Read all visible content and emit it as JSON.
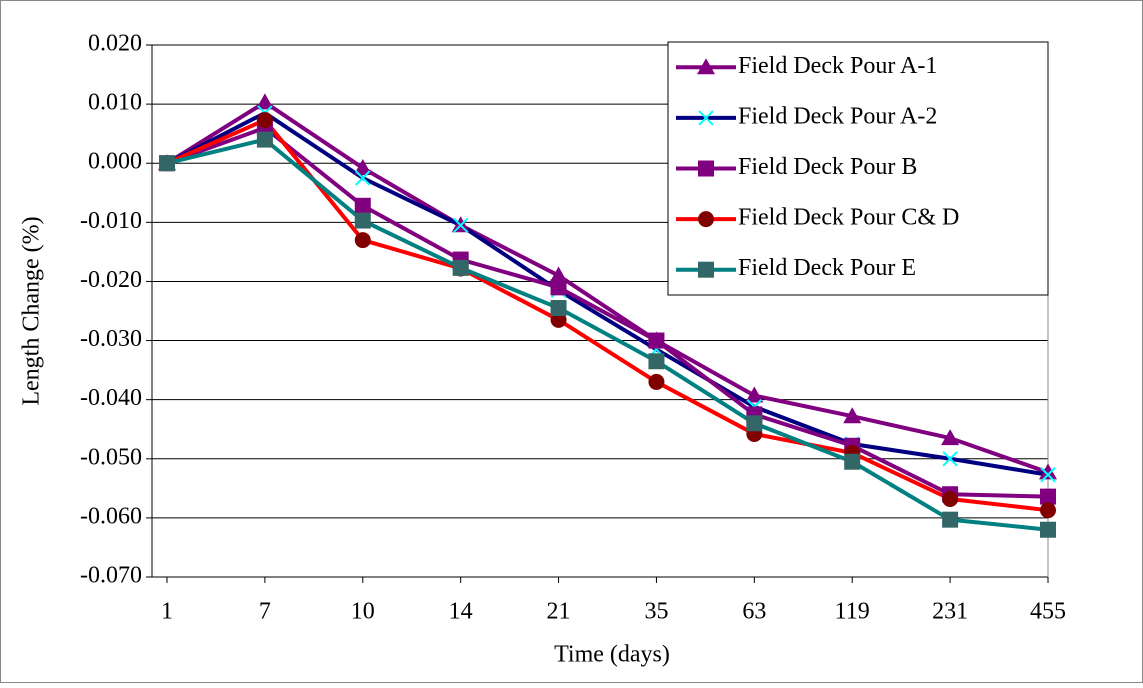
{
  "chart_data": {
    "type": "line",
    "x_label": "Time (days)",
    "y_label": "Length Change (%)",
    "categories": [
      "1",
      "7",
      "10",
      "14",
      "21",
      "35",
      "63",
      "119",
      "231",
      "455"
    ],
    "ylim": [
      -0.07,
      0.02
    ],
    "yticks": [
      {
        "value": 0.02,
        "label": "0.020"
      },
      {
        "value": 0.01,
        "label": "0.010"
      },
      {
        "value": 0,
        "label": "0.000"
      },
      {
        "value": -0.01,
        "label": "-0.010"
      },
      {
        "value": -0.02,
        "label": "-0.020"
      },
      {
        "value": -0.03,
        "label": "-0.030"
      },
      {
        "value": -0.04,
        "label": "-0.040"
      },
      {
        "value": -0.05,
        "label": "-0.050"
      },
      {
        "value": -0.06,
        "label": "-0.060"
      },
      {
        "value": -0.07,
        "label": "-0.070"
      }
    ],
    "grid": true,
    "legend": "top-right",
    "series": [
      {
        "name": "Field Deck Pour A-1",
        "color": "#800080",
        "marker": "triangle",
        "marker_color": "#800080",
        "values": [
          0,
          0.0103,
          -0.0008,
          -0.0105,
          -0.019,
          -0.03,
          -0.0393,
          -0.0428,
          -0.0465,
          -0.0523
        ]
      },
      {
        "name": "Field Deck Pour A-2",
        "color": "#000080",
        "marker": "x",
        "marker_color": "#00ffff",
        "values": [
          0,
          0.0085,
          -0.0025,
          -0.0105,
          -0.0215,
          -0.0315,
          -0.0412,
          -0.0475,
          -0.05,
          -0.0527
        ]
      },
      {
        "name": "Field Deck Pour B",
        "color": "#800080",
        "marker": "square",
        "marker_color": "#800080",
        "values": [
          0,
          0.006,
          -0.0072,
          -0.0163,
          -0.021,
          -0.03,
          -0.0425,
          -0.0478,
          -0.056,
          -0.0564
        ]
      },
      {
        "name": "Field Deck Pour C& D",
        "color": "#ff0000",
        "marker": "circle",
        "marker_color": "#800000",
        "values": [
          0,
          0.0073,
          -0.013,
          -0.0178,
          -0.0265,
          -0.037,
          -0.0458,
          -0.049,
          -0.0568,
          -0.0587
        ]
      },
      {
        "name": "Field Deck Pour E",
        "color": "#008080",
        "marker": "square",
        "marker_color": "#336666",
        "values": [
          0,
          0.004,
          -0.0097,
          -0.0177,
          -0.0245,
          -0.0335,
          -0.044,
          -0.0505,
          -0.0603,
          -0.062
        ]
      }
    ]
  }
}
